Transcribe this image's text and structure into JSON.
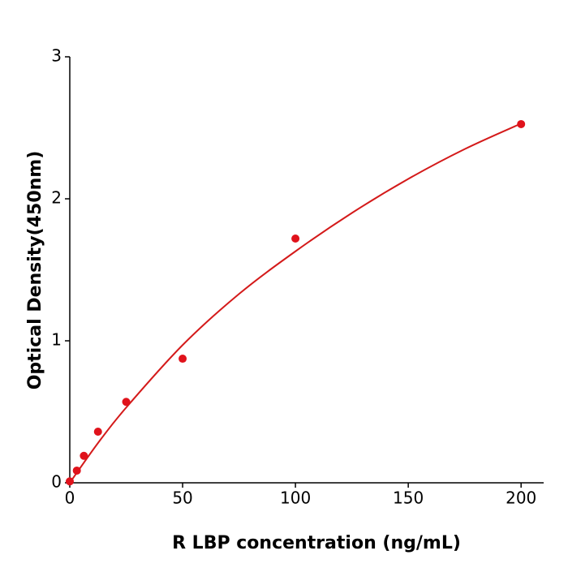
{
  "chart_data": {
    "type": "scatter",
    "x_label": "R  LBP concentration (ng/mL)",
    "y_label": "Optical Density(450nm)",
    "series": [
      {
        "color": "#e0121b",
        "x": [
          0,
          3.125,
          6.25,
          12.5,
          25,
          50,
          100,
          200
        ],
        "values": [
          0.01,
          0.086,
          0.19,
          0.36,
          0.57,
          0.874,
          1.72,
          2.526
        ]
      }
    ],
    "fit": {
      "color": "#d41a1a",
      "x": [
        0,
        12.5,
        25,
        50,
        75,
        100,
        125,
        150,
        175,
        200
      ],
      "values": [
        0,
        0.28,
        0.53,
        0.97,
        1.33,
        1.63,
        1.9,
        2.14,
        2.35,
        2.53
      ]
    },
    "xlim": [
      0,
      210
    ],
    "xticks": [
      0,
      50,
      100,
      150,
      200
    ],
    "ylim": [
      0,
      3
    ],
    "yticks": [
      0,
      1,
      2,
      3
    ]
  }
}
